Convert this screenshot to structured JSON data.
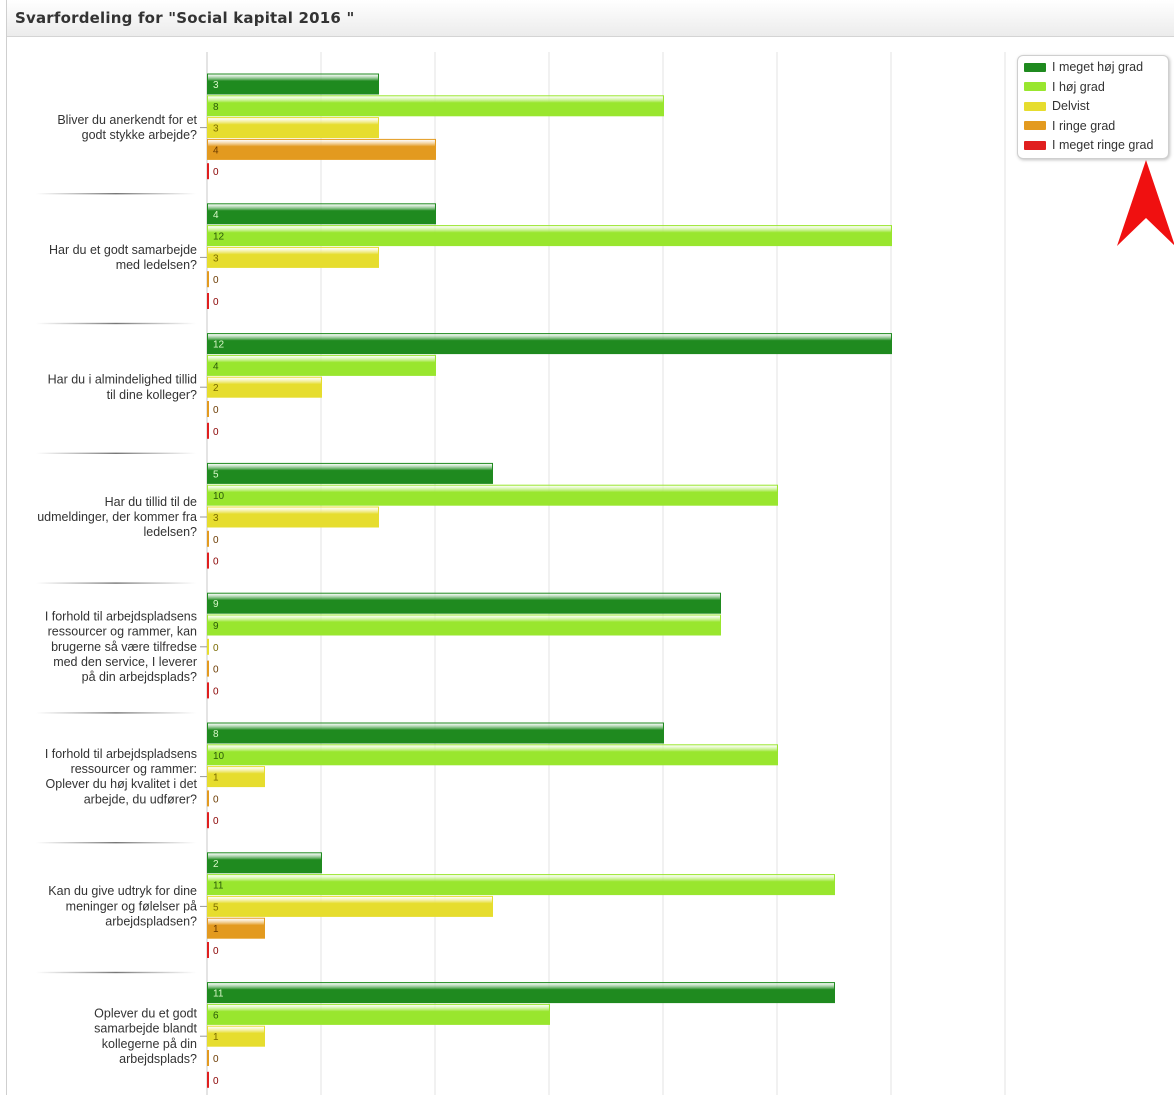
{
  "window": {
    "title": "Svarfordeling for \"Social kapital 2016 \""
  },
  "colors": {
    "very_high": "#1f8a1f",
    "high": "#99e62e",
    "partly": "#e6dd2e",
    "low": "#e39a1f",
    "very_low": "#e01f1f",
    "annotation_arrow": "#f01010"
  },
  "legend": {
    "items": [
      {
        "label": "I meget høj grad",
        "color": "#1f8a1f"
      },
      {
        "label": "I høj grad",
        "color": "#99e62e"
      },
      {
        "label": "Delvist",
        "color": "#e6dd2e"
      },
      {
        "label": "I ringe grad",
        "color": "#e39a1f"
      },
      {
        "label": "I meget ringe grad",
        "color": "#e01f1f"
      }
    ]
  },
  "chart_data": {
    "type": "bar",
    "orientation": "horizontal",
    "title": "Svarfordeling for \"Social kapital 2016 \"",
    "categories": [
      "Bliver du anerkendt for et godt stykke arbejde?",
      "Har du et godt samarbejde med ledelsen?",
      "Har du i almindelighed tillid til dine kolleger?",
      "Har du tillid til de udmeldinger, der kommer fra ledelsen?",
      "I forhold til arbejdspladsens ressourcer og rammer, kan brugerne så være tilfredse med den service, I leverer på din arbejdsplads?",
      "I forhold til arbejdspladsens ressourcer og rammer: Oplever du høj kvalitet i det arbejde, du udfører?",
      "Kan du give udtryk for dine meninger og følelser på arbejdspladsen?",
      "Oplever du et godt samarbejde blandt kollegerne på din arbejdsplads?"
    ],
    "category_lines": [
      [
        "Bliver du anerkendt for et",
        "godt stykke arbejde?"
      ],
      [
        "Har du et godt samarbejde",
        "med ledelsen?"
      ],
      [
        "Har du i almindelighed tillid",
        "til dine kolleger?"
      ],
      [
        "Har du tillid til de",
        "udmeldinger, der kommer fra",
        "ledelsen?"
      ],
      [
        "I forhold til arbejdspladsens",
        "ressourcer og rammer, kan",
        "brugerne så være tilfredse",
        "med den service, I leverer",
        "på din arbejdsplads?"
      ],
      [
        "I forhold til arbejdspladsens",
        "ressourcer og rammer:",
        "Oplever du høj kvalitet i det",
        "arbejde, du udfører?"
      ],
      [
        "Kan du give udtryk for dine",
        "meninger og følelser på",
        "arbejdspladsen?"
      ],
      [
        "Oplever du et godt",
        "samarbejde blandt",
        "kollegerne på din",
        "arbejdsplads?"
      ]
    ],
    "series": [
      {
        "name": "I meget høj grad",
        "color": "#1f8a1f",
        "values": [
          3,
          4,
          12,
          5,
          9,
          8,
          2,
          11
        ]
      },
      {
        "name": "I høj grad",
        "color": "#99e62e",
        "values": [
          8,
          12,
          4,
          10,
          9,
          10,
          11,
          6
        ]
      },
      {
        "name": "Delvist",
        "color": "#e6dd2e",
        "values": [
          3,
          3,
          2,
          3,
          0,
          1,
          5,
          1
        ]
      },
      {
        "name": "I ringe grad",
        "color": "#e39a1f",
        "values": [
          4,
          0,
          0,
          0,
          0,
          0,
          1,
          0
        ]
      },
      {
        "name": "I meget ringe grad",
        "color": "#e01f1f",
        "values": [
          0,
          0,
          0,
          0,
          0,
          0,
          0,
          0
        ]
      }
    ],
    "xlim": [
      0,
      14
    ],
    "grid": true,
    "legend_position": "top-right",
    "data_labels": true
  }
}
